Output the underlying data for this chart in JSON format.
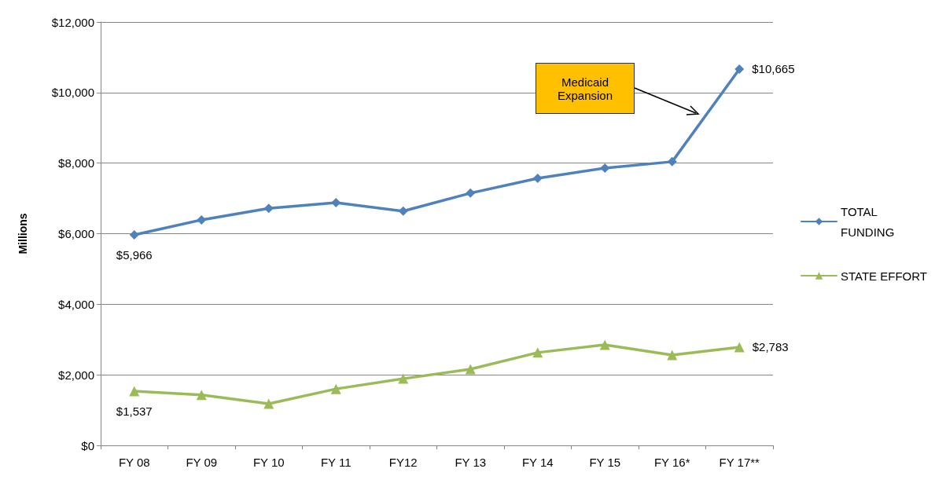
{
  "chart_data": {
    "type": "line",
    "ylabel": "Millions",
    "categories": [
      "FY 08",
      "FY 09",
      "FY 10",
      "FY 11",
      "FY12",
      "FY 13",
      "FY 14",
      "FY 15",
      "FY 16*",
      "FY 17**"
    ],
    "series": [
      {
        "name": "TOTAL FUNDING",
        "color": "#4f81bd",
        "marker": "diamond",
        "values": [
          5966,
          6390,
          6720,
          6880,
          6640,
          7150,
          7570,
          7860,
          8040,
          10665
        ],
        "value_labels": [
          "$5,966",
          null,
          null,
          null,
          null,
          null,
          null,
          null,
          null,
          "$10,665"
        ]
      },
      {
        "name": "STATE EFFORT",
        "color": "#9bbb59",
        "marker": "triangle",
        "values": [
          1537,
          1430,
          1180,
          1600,
          1890,
          2160,
          2630,
          2850,
          2560,
          2783
        ],
        "value_labels": [
          "$1,537",
          null,
          null,
          null,
          null,
          null,
          null,
          null,
          null,
          "$2,783"
        ]
      }
    ],
    "ylim": [
      0,
      12000
    ],
    "yticks": [
      {
        "value": 0,
        "label": "$0"
      },
      {
        "value": 2000,
        "label": "$2,000"
      },
      {
        "value": 4000,
        "label": "$4,000"
      },
      {
        "value": 6000,
        "label": "$6,000"
      },
      {
        "value": 8000,
        "label": "$8,000"
      },
      {
        "value": 10000,
        "label": "$10,000"
      },
      {
        "value": 12000,
        "label": "$12,000"
      }
    ],
    "grid": "y",
    "legend": "right",
    "line_style": "solid",
    "annotations": [
      "Medicaid Expansion"
    ]
  }
}
